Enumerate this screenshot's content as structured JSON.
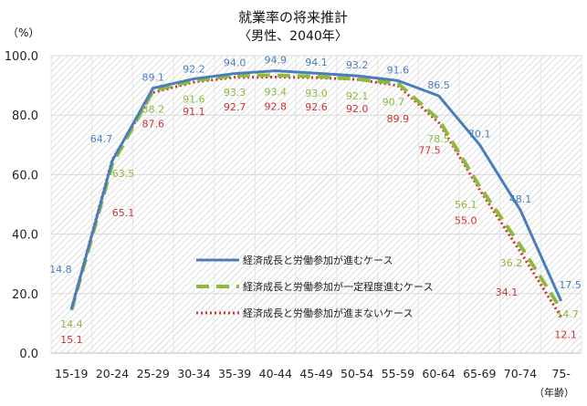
{
  "chart_data": {
    "type": "line",
    "title": "就業率の将来推計",
    "subtitle": "〈男性、2040年〉",
    "ylabel": "（%）",
    "xlabel": "（年齢）",
    "ylim": [
      0,
      100
    ],
    "yticks": [
      "0.0",
      "20.0",
      "40.0",
      "60.0",
      "80.0",
      "100.0"
    ],
    "grid": true,
    "legend_position": "center",
    "categories": [
      "15-19",
      "20-24",
      "25-29",
      "30-34",
      "35-39",
      "40-44",
      "45-49",
      "50-54",
      "55-59",
      "60-64",
      "65-69",
      "70-74",
      "75-"
    ],
    "series": [
      {
        "name": "経済成長と労働参加が進むケース",
        "color": "#4a7ebb",
        "style": "solid",
        "values": [
          14.8,
          64.7,
          89.1,
          92.2,
          94.0,
          94.9,
          94.1,
          93.2,
          91.6,
          86.5,
          70.1,
          48.1,
          17.5
        ]
      },
      {
        "name": "経済成長と労働参加が一定程度進むケース",
        "color": "#8dba3c",
        "style": "dashed",
        "values": [
          14.4,
          63.5,
          88.2,
          91.6,
          93.3,
          93.4,
          93.0,
          92.1,
          90.7,
          78.5,
          56.1,
          36.2,
          14.7
        ]
      },
      {
        "name": "経済成長と労働参加が進まないケース",
        "color": "#cc3333",
        "style": "dotted",
        "values": [
          15.1,
          65.1,
          87.6,
          91.1,
          92.7,
          92.8,
          92.6,
          92.0,
          89.9,
          77.5,
          55.0,
          34.1,
          12.1
        ]
      }
    ]
  }
}
